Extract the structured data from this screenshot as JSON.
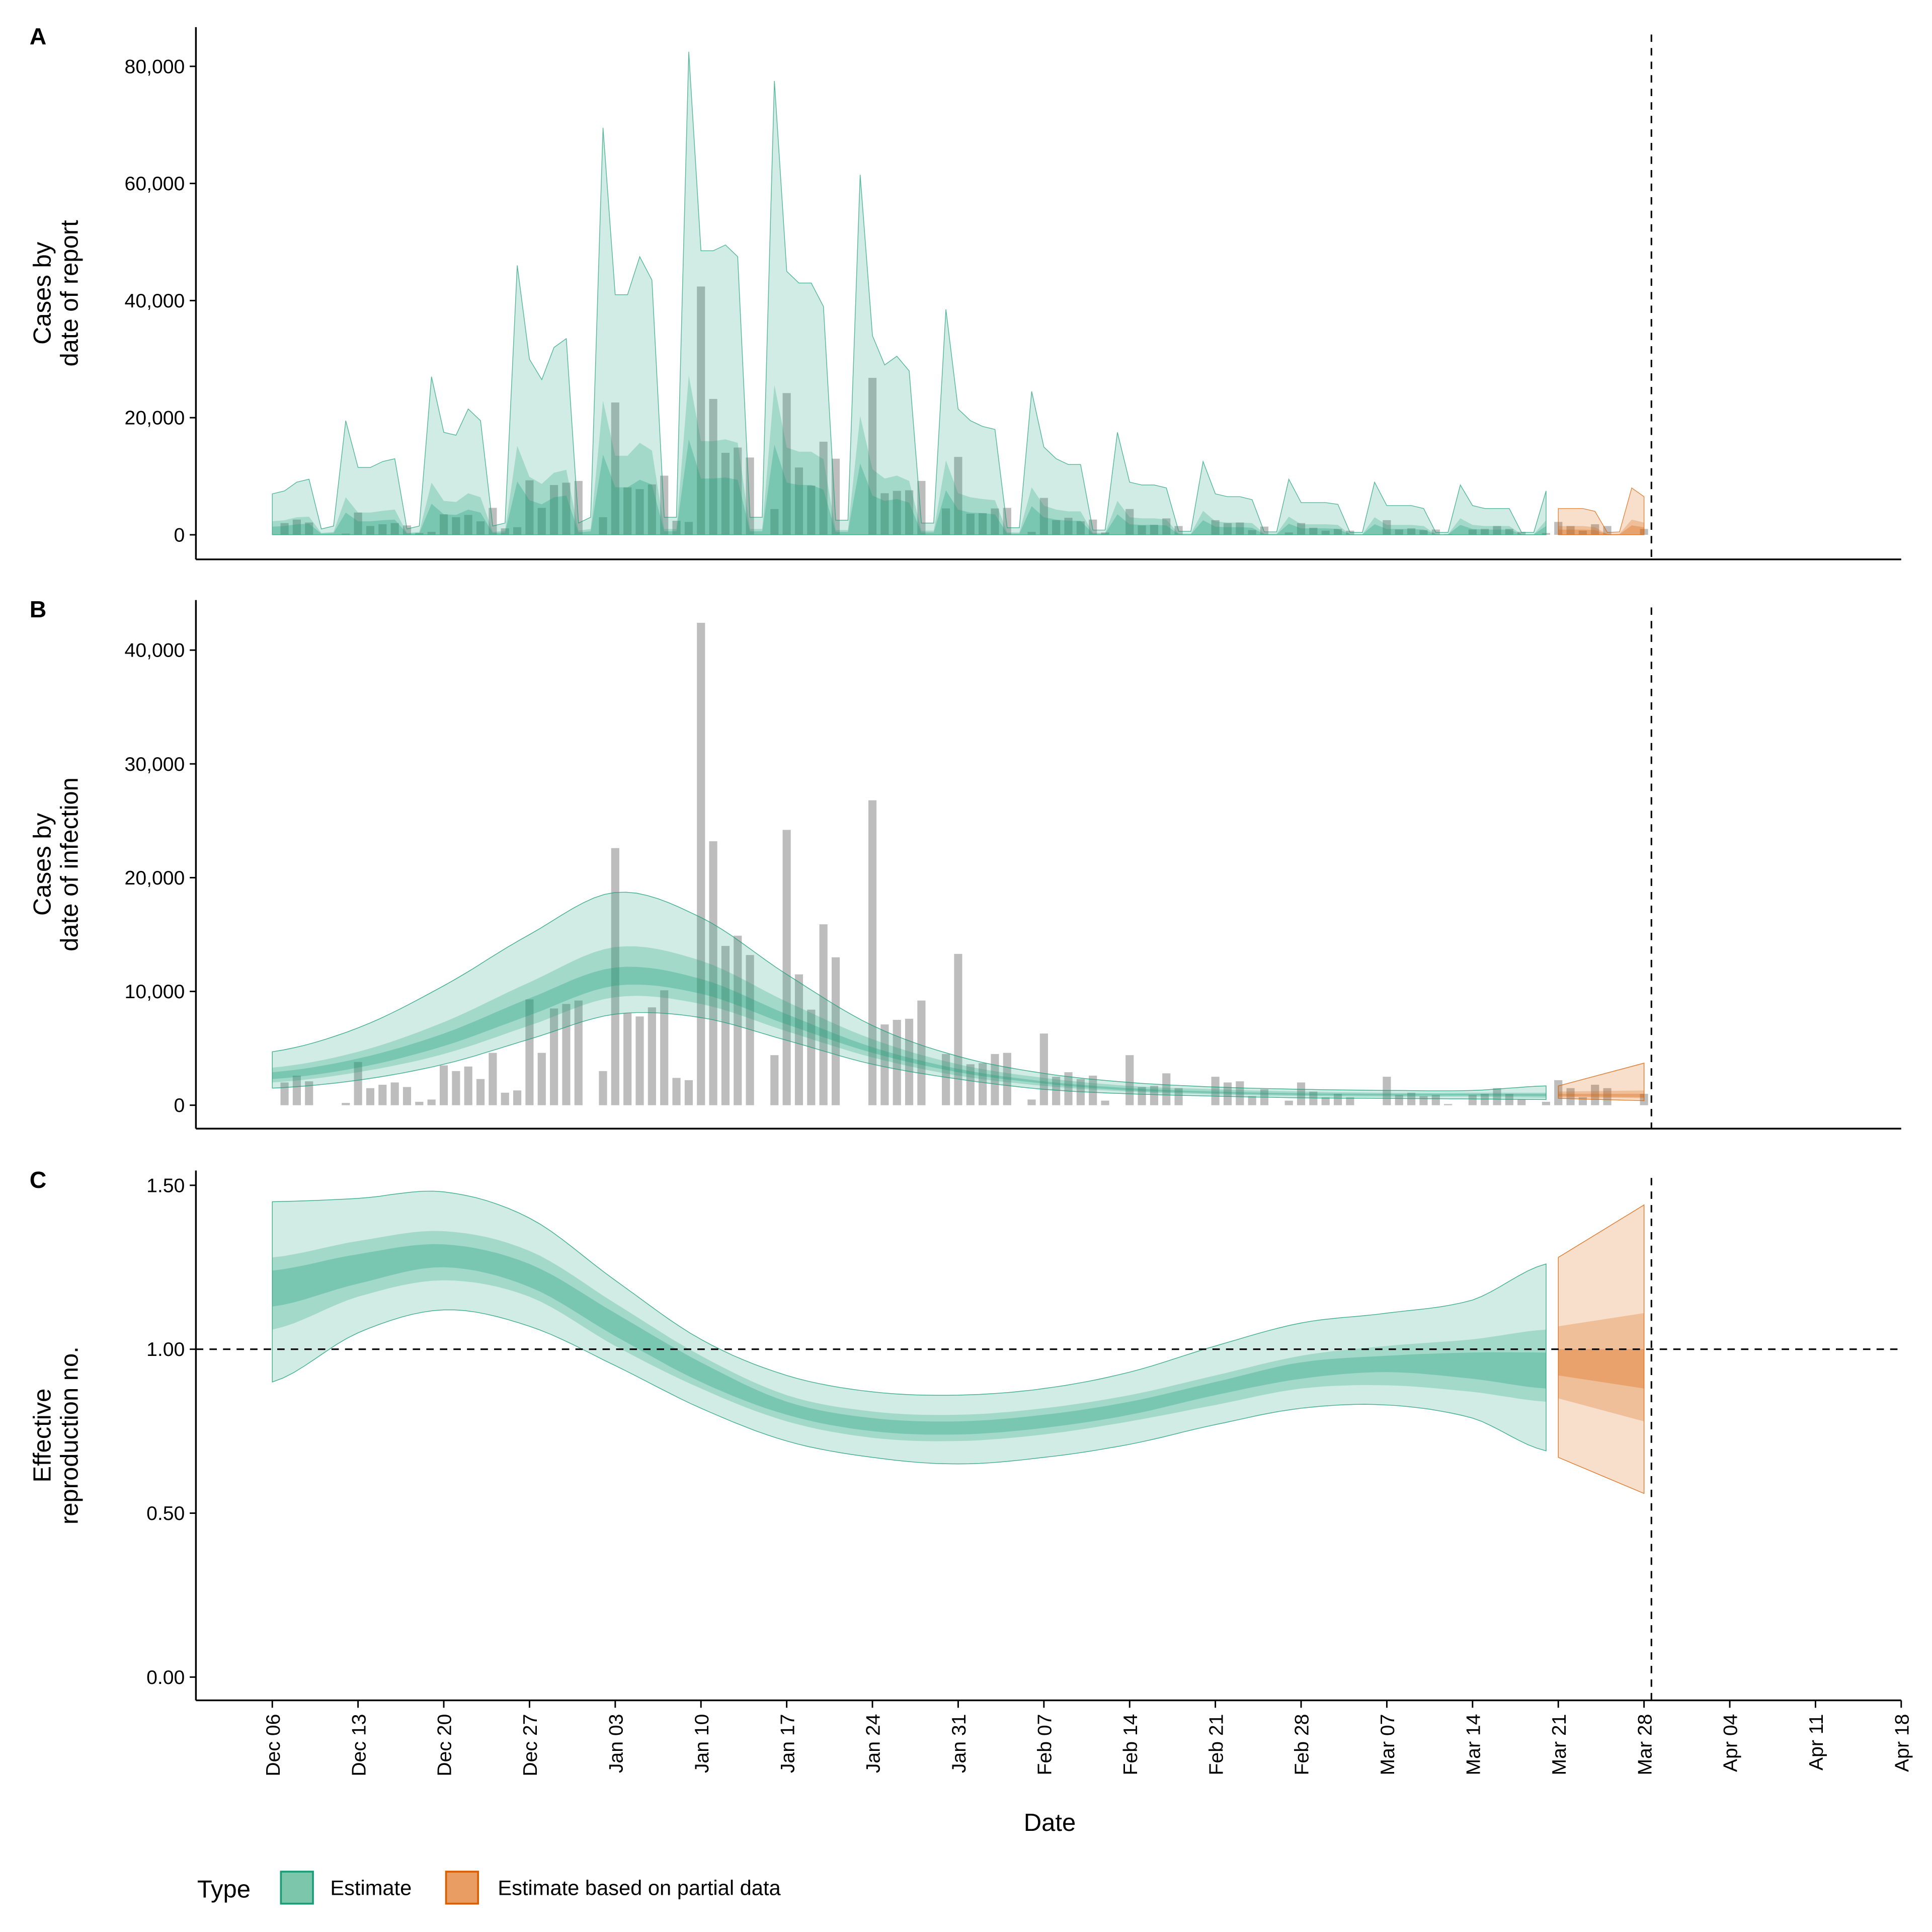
{
  "colors": {
    "estimate": "#1b9e77",
    "partial": "#d95f02",
    "bars": "#bdbdbd",
    "estimate_swatch": "#7cc6ab",
    "partial_swatch": "#e99d63"
  },
  "x_axis": {
    "label": "Date",
    "ticks": [
      "Dec 06",
      "Dec 13",
      "Dec 20",
      "Dec 27",
      "Jan 03",
      "Jan 10",
      "Jan 17",
      "Jan 24",
      "Jan 31",
      "Feb 07",
      "Feb 14",
      "Feb 21",
      "Feb 28",
      "Mar 07",
      "Mar 14",
      "Mar 21",
      "Mar 28",
      "Apr 04",
      "Apr 11",
      "Apr 18"
    ],
    "range": [
      "Dec 02",
      "Apr 18"
    ]
  },
  "reference_date": "Mar 28",
  "legend": {
    "title": "Type",
    "placement": "bottom",
    "items": [
      {
        "label": "Estimate"
      },
      {
        "label": "Estimate based on partial data"
      }
    ]
  },
  "chart_data": [
    {
      "panel": "A",
      "type": "bar+area",
      "ylabel": [
        "Cases by",
        "date of report"
      ],
      "yticks": [
        0,
        20000,
        40000,
        60000,
        80000
      ],
      "ytick_labels": [
        "0",
        "20,000",
        "40,000",
        "60,000",
        "80,000"
      ],
      "ylim": [
        -4200,
        86700
      ],
      "grid": false,
      "dates": [
        "Dec 06",
        "Dec 07",
        "Dec 08",
        "Dec 09",
        "Dec 10",
        "Dec 11",
        "Dec 12",
        "Dec 13",
        "Dec 14",
        "Dec 15",
        "Dec 16",
        "Dec 17",
        "Dec 18",
        "Dec 19",
        "Dec 20",
        "Dec 21",
        "Dec 22",
        "Dec 23",
        "Dec 24",
        "Dec 25",
        "Dec 26",
        "Dec 27",
        "Dec 28",
        "Dec 29",
        "Dec 30",
        "Dec 31",
        "Jan 01",
        "Jan 02",
        "Jan 03",
        "Jan 04",
        "Jan 05",
        "Jan 06",
        "Jan 07",
        "Jan 08",
        "Jan 09",
        "Jan 10",
        "Jan 11",
        "Jan 12",
        "Jan 13",
        "Jan 14",
        "Jan 15",
        "Jan 16",
        "Jan 17",
        "Jan 18",
        "Jan 19",
        "Jan 20",
        "Jan 21",
        "Jan 22",
        "Jan 23",
        "Jan 24",
        "Jan 25",
        "Jan 26",
        "Jan 27",
        "Jan 28",
        "Jan 29",
        "Jan 30",
        "Jan 31",
        "Feb 01",
        "Feb 02",
        "Feb 03",
        "Feb 04",
        "Feb 05",
        "Feb 06",
        "Feb 07",
        "Feb 08",
        "Feb 09",
        "Feb 10",
        "Feb 11",
        "Feb 12",
        "Feb 13",
        "Feb 14",
        "Feb 15",
        "Feb 16",
        "Feb 17",
        "Feb 18",
        "Feb 19",
        "Feb 20",
        "Feb 21",
        "Feb 22",
        "Feb 23",
        "Feb 24",
        "Feb 25",
        "Feb 26",
        "Feb 27",
        "Feb 28",
        "Mar 01",
        "Mar 02",
        "Mar 03",
        "Mar 04",
        "Mar 05",
        "Mar 06",
        "Mar 07",
        "Mar 08",
        "Mar 09",
        "Mar 10",
        "Mar 11",
        "Mar 12",
        "Mar 13",
        "Mar 14",
        "Mar 15",
        "Mar 16",
        "Mar 17",
        "Mar 18",
        "Mar 19",
        "Mar 20",
        "Mar 21",
        "Mar 22",
        "Mar 23",
        "Mar 24",
        "Mar 25",
        "Mar 26",
        "Mar 27",
        "Mar 28"
      ],
      "reported_cases": [
        2000,
        2600,
        2100,
        0,
        0,
        200,
        3800,
        1500,
        1800,
        2000,
        1600,
        300,
        500,
        3500,
        3000,
        3400,
        2300,
        4600,
        1100,
        1300,
        9300,
        4600,
        8500,
        8900,
        9200,
        0,
        3000,
        22600,
        8100,
        7800,
        8600,
        10100,
        2400,
        2200,
        42400,
        23200,
        14000,
        14900,
        13200,
        0,
        4400,
        24200,
        11500,
        8400,
        15900,
        13000,
        0,
        0,
        26800,
        7100,
        7500,
        7600,
        9200,
        0,
        4500,
        13300,
        3600,
        3700,
        4500,
        4600,
        0,
        500,
        6300,
        2500,
        2900,
        2300,
        2600,
        400,
        0,
        4400,
        1600,
        1700,
        2800,
        1500,
        0,
        0,
        2500,
        2000,
        2100,
        800,
        1400,
        0,
        400,
        2000,
        1200,
        700,
        1000,
        700,
        0,
        0,
        2500,
        900,
        1100,
        800,
        900,
        100,
        0,
        900,
        1000,
        1500,
        1000,
        500,
        0,
        300,
        2200,
        1500,
        700,
        1800,
        1500,
        0,
        0,
        1000
      ],
      "estimate_range": [
        "Dec 06",
        "Mar 20"
      ],
      "partial_range": [
        "Mar 21",
        "Mar 28"
      ],
      "estimate": {
        "upper_90": [
          7000,
          7500,
          9000,
          9500,
          1000,
          1500,
          19500,
          11500,
          11500,
          12500,
          13000,
          1000,
          1500,
          27000,
          17500,
          17000,
          21500,
          19500,
          1500,
          2000,
          46000,
          30000,
          26500,
          32000,
          33500,
          2000,
          3000,
          69500,
          41000,
          41000,
          47500,
          43500,
          3000,
          3000,
          82500,
          48500,
          48500,
          49500,
          47500,
          3000,
          3000,
          77500,
          45000,
          43000,
          43000,
          39000,
          2500,
          2500,
          61500,
          34000,
          29000,
          30500,
          28000,
          2000,
          2000,
          38500,
          21500,
          19500,
          18500,
          18000,
          1200,
          1200,
          24500,
          15000,
          13000,
          12000,
          12000,
          800,
          800,
          17500,
          9000,
          8500,
          8500,
          8000,
          600,
          600,
          12500,
          7000,
          6500,
          6500,
          6000,
          500,
          500,
          9500,
          5500,
          5500,
          5500,
          5200,
          400,
          400,
          9000,
          5000,
          5000,
          5000,
          4500,
          400,
          400,
          8500,
          5000,
          4500,
          4500,
          4500,
          400,
          400,
          7500
        ],
        "upper_50": [
          2300,
          2500,
          3000,
          3100,
          300,
          500,
          6400,
          3800,
          3800,
          4100,
          4300,
          300,
          500,
          8900,
          5800,
          5600,
          7100,
          6400,
          500,
          700,
          15200,
          9900,
          8700,
          10600,
          11100,
          700,
          1000,
          22900,
          13500,
          13500,
          15700,
          14400,
          1000,
          1000,
          27200,
          16000,
          16000,
          16300,
          15700,
          1000,
          1000,
          25600,
          14900,
          14200,
          14200,
          12900,
          800,
          800,
          20300,
          11200,
          9600,
          10100,
          9200,
          700,
          700,
          12700,
          7100,
          6400,
          6100,
          5900,
          400,
          400,
          8100,
          5000,
          4300,
          4000,
          4000,
          300,
          300,
          5800,
          3000,
          2800,
          2800,
          2600,
          200,
          200,
          4100,
          2300,
          2100,
          2100,
          2000,
          200,
          200,
          3100,
          1800,
          1800,
          1800,
          1700,
          100,
          100,
          3000,
          1700,
          1700,
          1700,
          1500,
          100,
          100,
          2800,
          1700,
          1500,
          1500,
          1500,
          100,
          100,
          2500
        ],
        "upper_20": [
          1400,
          1500,
          1800,
          1900,
          200,
          300,
          3800,
          2300,
          2300,
          2500,
          2600,
          200,
          300,
          5300,
          3500,
          3400,
          4300,
          3800,
          300,
          400,
          9100,
          5900,
          5200,
          6400,
          6700,
          400,
          600,
          13700,
          8100,
          8100,
          9400,
          8600,
          600,
          600,
          16300,
          9600,
          9600,
          9800,
          9400,
          600,
          600,
          15400,
          8900,
          8500,
          8500,
          7700,
          500,
          500,
          12200,
          6700,
          5800,
          6100,
          5500,
          400,
          400,
          7600,
          4300,
          3800,
          3700,
          3500,
          200,
          200,
          4900,
          3000,
          2600,
          2400,
          2400,
          200,
          200,
          3500,
          1800,
          1700,
          1700,
          1600,
          100,
          100,
          2500,
          1400,
          1300,
          1300,
          1200,
          100,
          100,
          1900,
          1100,
          1100,
          1100,
          1000,
          100,
          100,
          1800,
          1000,
          1000,
          1000,
          900,
          100,
          100,
          1700,
          1000,
          900,
          900,
          900,
          100,
          100,
          1500
        ]
      },
      "partial": {
        "upper_90": [
          4500,
          4500,
          4500,
          4000,
          400,
          500,
          8000,
          6500
        ],
        "upper_50": [
          1500,
          1500,
          1500,
          1300,
          100,
          200,
          2600,
          2100
        ],
        "upper_20": [
          900,
          900,
          900,
          800,
          100,
          100,
          1600,
          1300
        ]
      }
    },
    {
      "panel": "B",
      "type": "bar+area",
      "ylabel": [
        "Cases by",
        "date of infection"
      ],
      "yticks": [
        0,
        10000,
        20000,
        30000,
        40000
      ],
      "ytick_labels": [
        "0",
        "10,000",
        "20,000",
        "30,000",
        "40,000"
      ],
      "ylim": [
        -2060,
        44400
      ],
      "grid": false,
      "bars_from": "panel A reported_cases",
      "estimate": {
        "dates": [
          "Dec 06",
          "Dec 13",
          "Dec 20",
          "Dec 27",
          "Jan 03",
          "Jan 10",
          "Jan 17",
          "Jan 24",
          "Jan 31",
          "Feb 07",
          "Feb 14",
          "Feb 21",
          "Feb 28",
          "Mar 07",
          "Mar 14",
          "Mar 20"
        ],
        "upper_90": [
          4700,
          6800,
          10500,
          15000,
          18700,
          16500,
          11500,
          7000,
          4300,
          2800,
          2000,
          1600,
          1400,
          1300,
          1300,
          1700
        ],
        "upper_50": [
          3300,
          4700,
          7300,
          10800,
          13900,
          12700,
          9100,
          5800,
          3600,
          2400,
          1700,
          1400,
          1200,
          1100,
          1100,
          1100
        ],
        "upper_20": [
          2900,
          4100,
          6300,
          9400,
          12100,
          11100,
          8000,
          5100,
          3200,
          2100,
          1500,
          1200,
          1050,
          1000,
          1000,
          1000
        ],
        "lower_20": [
          2300,
          3300,
          5200,
          7900,
          10500,
          9800,
          7100,
          4600,
          2900,
          1900,
          1300,
          1050,
          900,
          850,
          850,
          800
        ],
        "lower_50": [
          2000,
          2900,
          4500,
          7000,
          9500,
          8900,
          6500,
          4200,
          2600,
          1700,
          1200,
          950,
          800,
          750,
          750,
          650
        ],
        "lower_90": [
          1500,
          2200,
          3600,
          5800,
          8000,
          7700,
          5700,
          3600,
          2300,
          1400,
          1000,
          800,
          650,
          600,
          550,
          500
        ]
      },
      "partial": {
        "dates": [
          "Mar 21",
          "Mar 28"
        ],
        "upper_90": [
          1700,
          3700
        ],
        "upper_50": [
          1200,
          1300
        ],
        "upper_20": [
          1000,
          1000
        ],
        "lower_20": [
          800,
          700
        ],
        "lower_50": [
          700,
          600
        ],
        "lower_90": [
          600,
          400
        ]
      }
    },
    {
      "panel": "C",
      "type": "area",
      "ylabel": [
        "Effective",
        "reproduction no."
      ],
      "yticks": [
        0,
        0.5,
        1.0,
        1.5
      ],
      "ytick_labels": [
        "0.00",
        "0.50",
        "1.00",
        "1.50"
      ],
      "ylim": [
        -0.071,
        1.545
      ],
      "grid": false,
      "hline": 1.0,
      "estimate": {
        "dates": [
          "Dec 06",
          "Dec 13",
          "Dec 20",
          "Dec 27",
          "Jan 03",
          "Jan 10",
          "Jan 17",
          "Jan 24",
          "Jan 31",
          "Feb 07",
          "Feb 14",
          "Feb 21",
          "Feb 28",
          "Mar 07",
          "Mar 14",
          "Mar 20"
        ],
        "upper_90": [
          1.45,
          1.46,
          1.48,
          1.4,
          1.21,
          1.03,
          0.92,
          0.87,
          0.86,
          0.88,
          0.93,
          1.01,
          1.08,
          1.11,
          1.15,
          1.26
        ],
        "upper_50": [
          1.28,
          1.33,
          1.36,
          1.3,
          1.14,
          0.98,
          0.86,
          0.81,
          0.8,
          0.82,
          0.86,
          0.92,
          0.98,
          1.01,
          1.03,
          1.06
        ],
        "upper_20": [
          1.24,
          1.29,
          1.32,
          1.26,
          1.11,
          0.96,
          0.84,
          0.79,
          0.78,
          0.8,
          0.84,
          0.9,
          0.96,
          0.98,
          0.99,
          0.99
        ],
        "lower_20": [
          1.13,
          1.2,
          1.25,
          1.19,
          1.04,
          0.9,
          0.8,
          0.75,
          0.74,
          0.76,
          0.8,
          0.86,
          0.91,
          0.93,
          0.91,
          0.88
        ],
        "lower_50": [
          1.06,
          1.16,
          1.21,
          1.16,
          1.01,
          0.88,
          0.78,
          0.73,
          0.72,
          0.74,
          0.78,
          0.83,
          0.88,
          0.89,
          0.87,
          0.84
        ],
        "lower_90": [
          0.9,
          1.05,
          1.12,
          1.07,
          0.95,
          0.82,
          0.72,
          0.67,
          0.65,
          0.67,
          0.71,
          0.77,
          0.82,
          0.83,
          0.79,
          0.69
        ]
      },
      "partial": {
        "dates": [
          "Mar 21",
          "Mar 28"
        ],
        "upper_90": [
          1.28,
          1.44
        ],
        "upper_50": [
          1.07,
          1.11
        ],
        "upper_20": [
          1.0,
          1.0
        ],
        "lower_20": [
          0.92,
          0.88
        ],
        "lower_50": [
          0.85,
          0.78
        ],
        "lower_90": [
          0.67,
          0.56
        ]
      }
    }
  ]
}
